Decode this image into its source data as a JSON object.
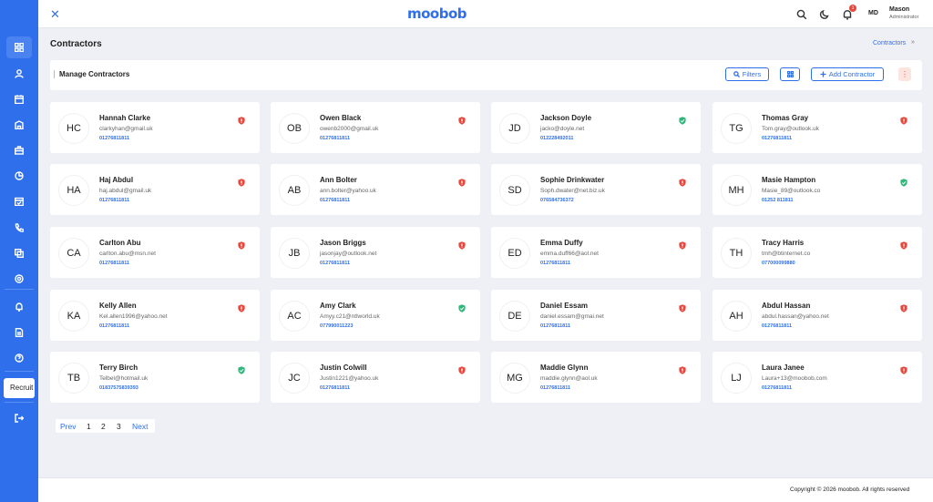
{
  "header": {
    "logo": "moobob",
    "notification_count": "1",
    "user_initials": "MD",
    "user_name": "Mason",
    "user_role": "Administrator"
  },
  "page": {
    "title": "Contractors",
    "breadcrumb": "Contractors",
    "breadcrumb_arrow": "»"
  },
  "sidebar": {
    "items": [
      "grid-icon",
      "user-icon",
      "calendar-icon",
      "building-icon",
      "briefcase-icon",
      "chart-icon",
      "calendar-check-icon",
      "phone-icon",
      "copy-icon",
      "settings-icon",
      "bell-icon",
      "document-icon",
      "help-icon",
      "logout-icon"
    ],
    "recruit_label": "Recruit"
  },
  "toolbar": {
    "title": "Manage Contractors",
    "filters_label": "Filters",
    "add_label": "Add Contractor",
    "more_label": "⋮"
  },
  "colors": {
    "primary": "#2f6fec",
    "verified": "#2fb67a",
    "unverified": "#e7473c"
  },
  "contractors": [
    {
      "initials": "HC",
      "name": "Hannah Clarke",
      "email": "clarkyhan@gmail.uk",
      "phone": "01276811811",
      "verified": false
    },
    {
      "initials": "OB",
      "name": "Owen Black",
      "email": "owenb2000@gmail.uk",
      "phone": "01276811811",
      "verified": false
    },
    {
      "initials": "JD",
      "name": "Jackson Doyle",
      "email": "jacko@doyle.net",
      "phone": "012228492011",
      "verified": true
    },
    {
      "initials": "TG",
      "name": "Thomas Gray",
      "email": "Tom.gray@outlook.uk",
      "phone": "01276811811",
      "verified": false
    },
    {
      "initials": "HA",
      "name": "Haj Abdul",
      "email": "haj.abdul@gmail.uk",
      "phone": "01276811811",
      "verified": false
    },
    {
      "initials": "AB",
      "name": "Ann Bolter",
      "email": "ann.bolter@yahoo.uk",
      "phone": "01276811811",
      "verified": false
    },
    {
      "initials": "SD",
      "name": "Sophie Drinkwater",
      "email": "Soph.dwater@net.biz.uk",
      "phone": "076584736372",
      "verified": false
    },
    {
      "initials": "MH",
      "name": "Masie Hampton",
      "email": "Masie_89@outlook.co",
      "phone": "01252 811811",
      "verified": true
    },
    {
      "initials": "CA",
      "name": "Carlton Abu",
      "email": "carlton.abu@msn.net",
      "phone": "01276811811",
      "verified": false
    },
    {
      "initials": "JB",
      "name": "Jason Briggs",
      "email": "jasonjay@outlook.net",
      "phone": "01276811811",
      "verified": false
    },
    {
      "initials": "ED",
      "name": "Emma Duffy",
      "email": "emma.duff66@aol.net",
      "phone": "01276811811",
      "verified": false
    },
    {
      "initials": "TH",
      "name": "Tracy Harris",
      "email": "tmh@btinternet.co",
      "phone": "077000099880",
      "verified": false
    },
    {
      "initials": "KA",
      "name": "Kelly Allen",
      "email": "Kel.allen1996@yahoo.net",
      "phone": "01276811811",
      "verified": false
    },
    {
      "initials": "AC",
      "name": "Amy Clark",
      "email": "Amyy.c21@ntlworld.uk",
      "phone": "077990011223",
      "verified": true
    },
    {
      "initials": "DE",
      "name": "Daniel Essam",
      "email": "daniel.essam@gmai.net",
      "phone": "01276811811",
      "verified": false
    },
    {
      "initials": "AH",
      "name": "Abdul Hassan",
      "email": "abdul.hassan@yahoo.net",
      "phone": "01276811811",
      "verified": false
    },
    {
      "initials": "TB",
      "name": "Terry Birch",
      "email": "Telbel@hotmail.uk",
      "phone": "01837575839393",
      "verified": true
    },
    {
      "initials": "JC",
      "name": "Justin Colwill",
      "email": "Justin1221@yahoo.uk",
      "phone": "01276811811",
      "verified": false
    },
    {
      "initials": "MG",
      "name": "Maddie Glynn",
      "email": "maddie.glynn@aol.uk",
      "phone": "01276811811",
      "verified": false
    },
    {
      "initials": "LJ",
      "name": "Laura Janee",
      "email": "Laura+13@moobob.com",
      "phone": "01276811811",
      "verified": false
    }
  ],
  "pagination": {
    "prev": "Prev",
    "pages": [
      "1",
      "2",
      "3"
    ],
    "next": "Next"
  },
  "footer": {
    "text": "Copyright © 2026 moobob. All rights reserved"
  }
}
